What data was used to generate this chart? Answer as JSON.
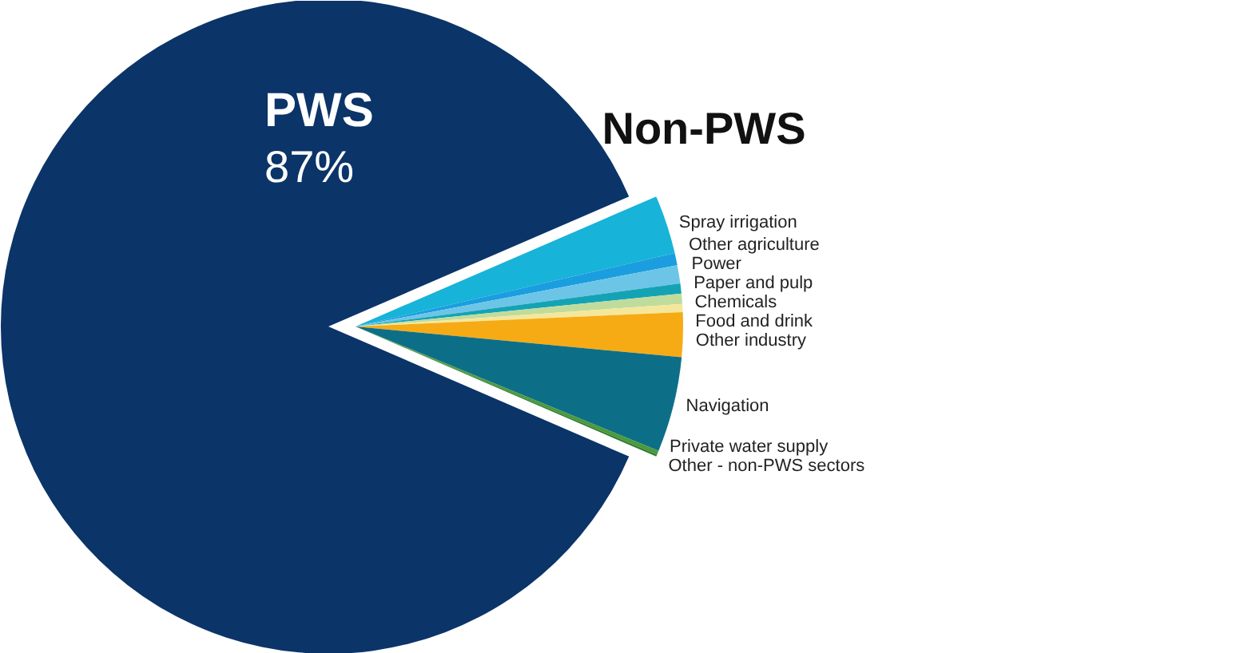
{
  "chart_data": {
    "type": "pie",
    "title": "Non-PWS",
    "categories": [
      "PWS",
      "Spray irrigation",
      "Other agriculture",
      "Power",
      "Paper and pulp",
      "Chemicals",
      "Food and drink",
      "Other industry",
      "Navigation",
      "Private water supply",
      "Other - non-PWS sectors"
    ],
    "values": [
      87,
      2.9,
      0.6,
      0.9,
      0.5,
      0.5,
      0.4,
      2.2,
      4.7,
      0.2,
      0.1
    ],
    "colors": [
      "#0b3468",
      "#17b3d8",
      "#1a9ee0",
      "#6cc5e6",
      "#14a3b5",
      "#c0dc9c",
      "#f4e79a",
      "#f6ab14",
      "#0d6f87",
      "#4c9a3a",
      "#2e7d32"
    ],
    "value_labels": [
      "87%",
      null,
      null,
      null,
      null,
      null,
      null,
      null,
      null,
      null,
      null
    ]
  }
}
